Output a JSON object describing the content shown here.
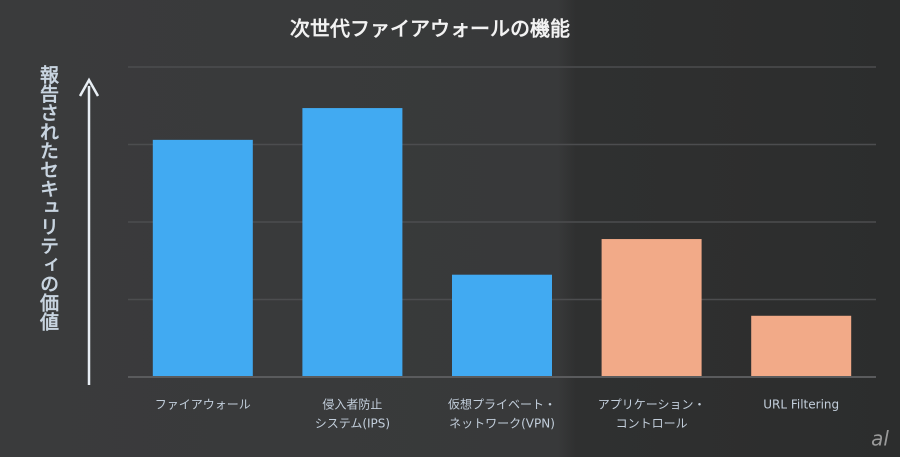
{
  "chart_data": {
    "type": "bar",
    "title": "次世代ファイアウォールの機能",
    "y_label": "報告されたセキュリティの価値",
    "categories": [
      [
        "ファイアウォール"
      ],
      [
        "侵入者防止",
        "システム(IPS)"
      ],
      [
        "仮想プライベート・",
        "ネットワーク(VPN)"
      ],
      [
        "アプリケーション・",
        "コントロール"
      ],
      [
        "URL Filtering"
      ]
    ],
    "values": [
      3.06,
      3.47,
      1.32,
      1.78,
      0.79
    ],
    "colors": [
      "#41aaf2",
      "#41aaf2",
      "#41aaf2",
      "#f2aa88",
      "#f2aa88"
    ],
    "ylim": [
      0,
      4
    ],
    "yticks": [
      0,
      1,
      2,
      3,
      4
    ],
    "grid": true,
    "watermark": "al"
  }
}
